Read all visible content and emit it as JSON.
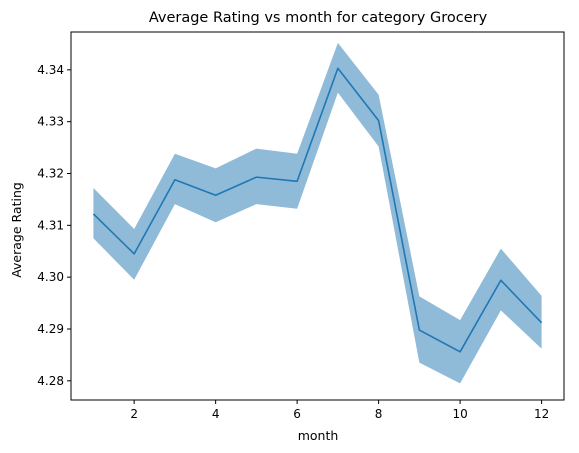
{
  "chart_data": {
    "type": "line",
    "title": "Average Rating vs month for category Grocery",
    "xlabel": "month",
    "ylabel": "Average Rating",
    "xlim": [
      0.45,
      12.55
    ],
    "ylim": [
      4.2763,
      4.3473
    ],
    "x_ticks": [
      2,
      4,
      6,
      8,
      10,
      12
    ],
    "y_ticks": [
      4.28,
      4.29,
      4.3,
      4.31,
      4.32,
      4.33,
      4.34
    ],
    "y_tick_labels": [
      "4.28",
      "4.29",
      "4.30",
      "4.31",
      "4.32",
      "4.33",
      "4.34"
    ],
    "grid": false,
    "line_color": "#1f77b4",
    "band_color": "#1f77b4",
    "band_opacity": 0.5,
    "series": [
      {
        "x": [
          1,
          2,
          3,
          4,
          5,
          6,
          7,
          8,
          9,
          10,
          11,
          12
        ],
        "values": [
          4.3122,
          4.3045,
          4.3188,
          4.3158,
          4.3193,
          4.3185,
          4.3403,
          4.3302,
          4.2898,
          4.2856,
          4.2994,
          4.2912
        ],
        "lower": [
          4.3075,
          4.2995,
          4.3141,
          4.3106,
          4.3141,
          4.3132,
          4.3356,
          4.3252,
          4.2835,
          4.2795,
          4.2936,
          4.2862
        ],
        "upper": [
          4.3172,
          4.3093,
          4.3238,
          4.321,
          4.3248,
          4.3238,
          4.3452,
          4.3352,
          4.2963,
          4.2917,
          4.3055,
          4.2964
        ]
      }
    ]
  }
}
